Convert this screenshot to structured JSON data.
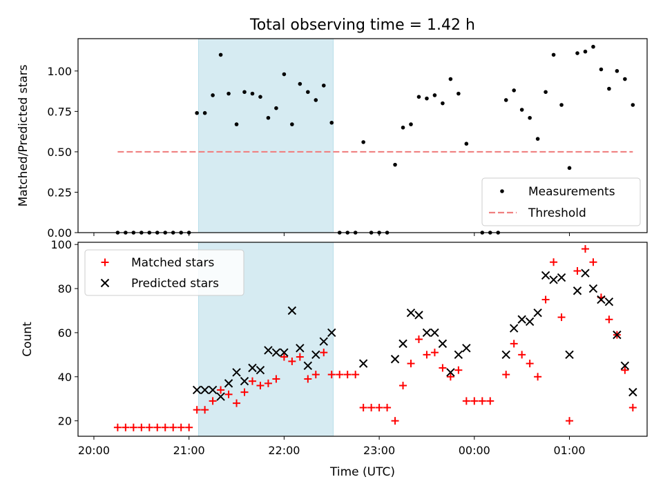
{
  "figure": {
    "title": "Total observing time = 1.42 h"
  },
  "colors": {
    "measurement": "#000000",
    "threshold": "#f08080",
    "matched": "#ff0000",
    "predicted": "#000000",
    "highlight_band": "#add8e6"
  },
  "chart_data": [
    {
      "type": "scatter",
      "title": "Total observing time = 1.42 h",
      "xlabel": "",
      "ylabel": "Matched/Predicted stars",
      "x_axis": "time",
      "yticks": [
        "0.00",
        "0.25",
        "0.50",
        "0.75",
        "1.00"
      ],
      "ylim": [
        0,
        1.2
      ],
      "highlight_span": {
        "start": "21:06",
        "end": "22:31",
        "color": "light blue"
      },
      "legend": {
        "placement": "lower right",
        "entries": [
          "Measurements",
          "Threshold"
        ]
      },
      "series": [
        {
          "name": "Measurements",
          "marker": "dot",
          "points": [
            [
              "20:15",
              0
            ],
            [
              "20:20",
              0
            ],
            [
              "20:25",
              0
            ],
            [
              "20:30",
              0
            ],
            [
              "20:35",
              0
            ],
            [
              "20:40",
              0
            ],
            [
              "20:45",
              0
            ],
            [
              "20:50",
              0
            ],
            [
              "20:55",
              0
            ],
            [
              "21:00",
              0
            ],
            [
              "21:05",
              0.74
            ],
            [
              "21:10",
              0.74
            ],
            [
              "21:15",
              0.85
            ],
            [
              "21:20",
              1.1
            ],
            [
              "21:25",
              0.86
            ],
            [
              "21:30",
              0.67
            ],
            [
              "21:35",
              0.87
            ],
            [
              "21:40",
              0.86
            ],
            [
              "21:45",
              0.84
            ],
            [
              "21:50",
              0.71
            ],
            [
              "21:55",
              0.77
            ],
            [
              "22:00",
              0.98
            ],
            [
              "22:05",
              0.67
            ],
            [
              "22:10",
              0.92
            ],
            [
              "22:15",
              0.87
            ],
            [
              "22:20",
              0.82
            ],
            [
              "22:25",
              0.91
            ],
            [
              "22:30",
              0.68
            ],
            [
              "22:35",
              0
            ],
            [
              "22:40",
              0
            ],
            [
              "22:45",
              0
            ],
            [
              "22:50",
              0.56
            ],
            [
              "22:55",
              0
            ],
            [
              "23:00",
              0
            ],
            [
              "23:05",
              0
            ],
            [
              "23:10",
              0.42
            ],
            [
              "23:15",
              0.65
            ],
            [
              "23:20",
              0.67
            ],
            [
              "23:25",
              0.84
            ],
            [
              "23:30",
              0.83
            ],
            [
              "23:35",
              0.85
            ],
            [
              "23:40",
              0.8
            ],
            [
              "23:45",
              0.95
            ],
            [
              "23:50",
              0.86
            ],
            [
              "23:55",
              0.55
            ],
            [
              "00:05",
              0
            ],
            [
              "00:10",
              0
            ],
            [
              "00:15",
              0
            ],
            [
              "00:20",
              0.82
            ],
            [
              "00:25",
              0.88
            ],
            [
              "00:30",
              0.76
            ],
            [
              "00:35",
              0.71
            ],
            [
              "00:40",
              0.58
            ],
            [
              "00:45",
              0.87
            ],
            [
              "00:50",
              1.1
            ],
            [
              "00:55",
              0.79
            ],
            [
              "01:00",
              0.4
            ],
            [
              "01:05",
              1.11
            ],
            [
              "01:10",
              1.12
            ],
            [
              "01:15",
              1.15
            ],
            [
              "01:20",
              1.01
            ],
            [
              "01:25",
              0.89
            ],
            [
              "01:30",
              1.0
            ],
            [
              "01:35",
              0.95
            ],
            [
              "01:40",
              0.79
            ]
          ]
        },
        {
          "name": "Threshold",
          "style": "dashed line",
          "points": [
            [
              "20:15",
              0.5
            ],
            [
              "01:40",
              0.5
            ]
          ]
        }
      ]
    },
    {
      "type": "scatter",
      "xlabel": "Time (UTC)",
      "ylabel": "Count",
      "x_axis": "time",
      "xticks": [
        "20:00",
        "21:00",
        "22:00",
        "23:00",
        "00:00",
        "01:00"
      ],
      "yticks": [
        "20",
        "40",
        "60",
        "80",
        "100"
      ],
      "ylim": [
        13,
        101
      ],
      "highlight_span": {
        "start": "21:06",
        "end": "22:31",
        "color": "light blue"
      },
      "legend": {
        "placement": "upper left",
        "entries": [
          "Matched stars",
          "Predicted stars"
        ]
      },
      "series": [
        {
          "name": "Matched stars",
          "marker": "plus",
          "points": [
            [
              "20:15",
              17
            ],
            [
              "20:20",
              17
            ],
            [
              "20:25",
              17
            ],
            [
              "20:30",
              17
            ],
            [
              "20:35",
              17
            ],
            [
              "20:40",
              17
            ],
            [
              "20:45",
              17
            ],
            [
              "20:50",
              17
            ],
            [
              "20:55",
              17
            ],
            [
              "21:00",
              17
            ],
            [
              "21:05",
              25
            ],
            [
              "21:10",
              25
            ],
            [
              "21:15",
              29
            ],
            [
              "21:20",
              34
            ],
            [
              "21:25",
              32
            ],
            [
              "21:30",
              28
            ],
            [
              "21:35",
              33
            ],
            [
              "21:40",
              38
            ],
            [
              "21:45",
              36
            ],
            [
              "21:50",
              37
            ],
            [
              "21:55",
              39
            ],
            [
              "22:00",
              49
            ],
            [
              "22:05",
              47
            ],
            [
              "22:10",
              49
            ],
            [
              "22:15",
              39
            ],
            [
              "22:20",
              41
            ],
            [
              "22:25",
              51
            ],
            [
              "22:30",
              41
            ],
            [
              "22:35",
              41
            ],
            [
              "22:40",
              41
            ],
            [
              "22:45",
              41
            ],
            [
              "22:50",
              26
            ],
            [
              "22:55",
              26
            ],
            [
              "23:00",
              26
            ],
            [
              "23:05",
              26
            ],
            [
              "23:10",
              20
            ],
            [
              "23:15",
              36
            ],
            [
              "23:20",
              46
            ],
            [
              "23:25",
              57
            ],
            [
              "23:30",
              50
            ],
            [
              "23:35",
              51
            ],
            [
              "23:40",
              44
            ],
            [
              "23:45",
              40
            ],
            [
              "23:50",
              43
            ],
            [
              "23:55",
              29
            ],
            [
              "00:00",
              29
            ],
            [
              "00:05",
              29
            ],
            [
              "00:10",
              29
            ],
            [
              "00:20",
              41
            ],
            [
              "00:25",
              55
            ],
            [
              "00:30",
              50
            ],
            [
              "00:35",
              46
            ],
            [
              "00:40",
              40
            ],
            [
              "00:45",
              75
            ],
            [
              "00:50",
              92
            ],
            [
              "00:55",
              67
            ],
            [
              "01:00",
              20
            ],
            [
              "01:05",
              88
            ],
            [
              "01:10",
              98
            ],
            [
              "01:15",
              92
            ],
            [
              "01:20",
              76
            ],
            [
              "01:25",
              66
            ],
            [
              "01:30",
              59
            ],
            [
              "01:35",
              43
            ],
            [
              "01:40",
              26
            ]
          ]
        },
        {
          "name": "Predicted stars",
          "marker": "x",
          "points": [
            [
              "21:05",
              34
            ],
            [
              "21:10",
              34
            ],
            [
              "21:15",
              34
            ],
            [
              "21:20",
              31
            ],
            [
              "21:25",
              37
            ],
            [
              "21:30",
              42
            ],
            [
              "21:35",
              38
            ],
            [
              "21:40",
              44
            ],
            [
              "21:45",
              43
            ],
            [
              "21:50",
              52
            ],
            [
              "21:55",
              51
            ],
            [
              "22:00",
              51
            ],
            [
              "22:05",
              70
            ],
            [
              "22:10",
              53
            ],
            [
              "22:15",
              45
            ],
            [
              "22:20",
              50
            ],
            [
              "22:25",
              56
            ],
            [
              "22:30",
              60
            ],
            [
              "22:50",
              46
            ],
            [
              "23:10",
              48
            ],
            [
              "23:15",
              55
            ],
            [
              "23:20",
              69
            ],
            [
              "23:25",
              68
            ],
            [
              "23:30",
              60
            ],
            [
              "23:35",
              60
            ],
            [
              "23:40",
              55
            ],
            [
              "23:45",
              42
            ],
            [
              "23:50",
              50
            ],
            [
              "23:55",
              53
            ],
            [
              "00:20",
              50
            ],
            [
              "00:25",
              62
            ],
            [
              "00:30",
              66
            ],
            [
              "00:35",
              65
            ],
            [
              "00:40",
              69
            ],
            [
              "00:45",
              86
            ],
            [
              "00:50",
              84
            ],
            [
              "00:55",
              85
            ],
            [
              "01:00",
              50
            ],
            [
              "01:05",
              79
            ],
            [
              "01:10",
              87
            ],
            [
              "01:15",
              80
            ],
            [
              "01:20",
              75
            ],
            [
              "01:25",
              74
            ],
            [
              "01:30",
              59
            ],
            [
              "01:35",
              45
            ],
            [
              "01:40",
              33
            ]
          ]
        }
      ]
    }
  ]
}
